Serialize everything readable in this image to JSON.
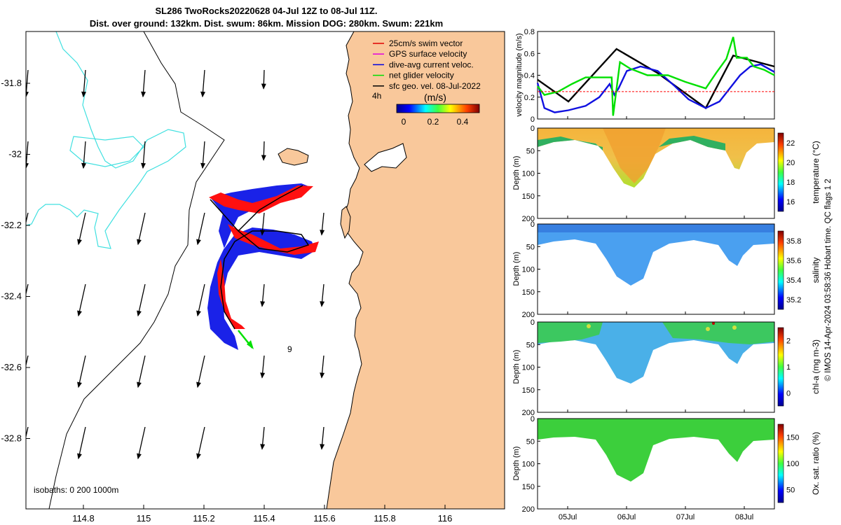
{
  "header": {
    "line1": "SL286 TwoRocks20220628 04-Jul 12Z to 08-Jul 11Z.",
    "line2": "Dist. over ground: 132km. Dist. swum: 86km. Mission DOG: 280km. Swum: 221km"
  },
  "map": {
    "lat_ticks": [
      "-31.8",
      "-32",
      "-32.2",
      "-32.4",
      "-32.6",
      "-32.8"
    ],
    "lon_ticks": [
      "114.8",
      "115",
      "115.2",
      "115.4",
      "115.6",
      "115.8",
      "116"
    ],
    "legend": [
      {
        "label": "25cm/s swim vector",
        "color": "#e00000"
      },
      {
        "label": "GPS surface velocity",
        "color": "#e000e0"
      },
      {
        "label": "dive-avg current veloc.",
        "color": "#0000e0"
      },
      {
        "label": "net glider velocity",
        "color": "#00e000"
      },
      {
        "label": "sfc geo. vel. 08-Jul-2022",
        "color": "#000000"
      }
    ],
    "legend_note": "4h",
    "colorbar_title": "(m/s)",
    "colorbar_ticks": [
      "0",
      "0.2",
      "0.4"
    ],
    "marker_label": "9",
    "isobaths": "isobaths: 0   200  1000m",
    "land_color": "#f9c89b",
    "isobath_color": "#40e0e0"
  },
  "velocity_panel": {
    "ylabel": "velocity magnitude (m/s)",
    "yticks": [
      "0",
      "0.2",
      "0.4",
      "0.6",
      "0.8"
    ]
  },
  "sections": [
    {
      "ylabel": "Depth (m)",
      "cblabel": "temperature (°C)",
      "cbticks": [
        "16",
        "18",
        "20",
        "22"
      ]
    },
    {
      "ylabel": "Depth (m)",
      "cblabel": "salinity",
      "cbticks": [
        "35.2",
        "35.4",
        "35.6",
        "35.8"
      ]
    },
    {
      "ylabel": "Depth (m)",
      "cblabel": "chl-a (mg m-3)",
      "cbticks": [
        "0",
        "1",
        "2"
      ]
    },
    {
      "ylabel": "Depth (m)",
      "cblabel": "Ox. sat. ratio (%)",
      "cbticks": [
        "50",
        "100",
        "150"
      ]
    }
  ],
  "depth_ticks": [
    "0",
    "50",
    "100",
    "150",
    "200"
  ],
  "time_ticks": [
    "05Jul",
    "06Jul",
    "07Jul",
    "08Jul"
  ],
  "footer": "© IMOS 14-Apr-2024 03:58:36 Hobart time. QC flags 1  2",
  "chart_data": [
    {
      "type": "line",
      "title": "",
      "xlabel": "",
      "ylabel": "velocity magnitude (m/s)",
      "ylim": [
        0,
        0.8
      ],
      "x_label_ticks": [
        "05Jul",
        "06Jul",
        "07Jul",
        "08Jul"
      ],
      "series": [
        {
          "color": "#000000",
          "x": [
            0,
            0.45,
            1.15,
            1.75,
            2.45,
            2.85,
            3.45
          ],
          "values": [
            0.36,
            0.16,
            0.64,
            0.42,
            0.1,
            0.58,
            0.48
          ]
        },
        {
          "color": "#1010e0",
          "x": [
            0,
            0.1,
            0.25,
            0.45,
            0.7,
            0.9,
            1.05,
            1.12,
            1.18,
            1.3,
            1.5,
            1.75,
            2.0,
            2.2,
            2.45,
            2.65,
            2.8,
            2.95,
            3.1,
            3.25,
            3.45
          ],
          "values": [
            0.33,
            0.1,
            0.06,
            0.08,
            0.12,
            0.2,
            0.32,
            0.22,
            0.28,
            0.44,
            0.48,
            0.44,
            0.3,
            0.18,
            0.1,
            0.16,
            0.28,
            0.4,
            0.48,
            0.5,
            0.43
          ]
        },
        {
          "color": "#00e000",
          "x": [
            0,
            0.1,
            0.3,
            0.5,
            0.7,
            0.9,
            1.08,
            1.1,
            1.2,
            1.35,
            1.6,
            1.9,
            2.15,
            2.45,
            2.6,
            2.75,
            2.85,
            2.9,
            3.05,
            3.15,
            3.3,
            3.45
          ],
          "values": [
            0.3,
            0.22,
            0.25,
            0.32,
            0.38,
            0.38,
            0.38,
            0.03,
            0.52,
            0.46,
            0.4,
            0.4,
            0.34,
            0.28,
            0.42,
            0.55,
            0.75,
            0.56,
            0.56,
            0.48,
            0.45,
            0.4
          ]
        },
        {
          "color": "#ff0000",
          "x": [
            0,
            3.45
          ],
          "values": [
            0.25,
            0.25
          ]
        }
      ]
    }
  ]
}
